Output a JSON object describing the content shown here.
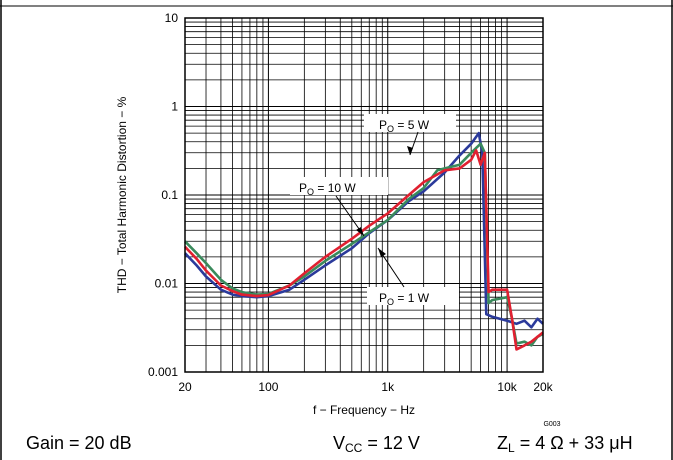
{
  "chart_data": {
    "type": "line",
    "x_scale": "log",
    "y_scale": "log",
    "xlim": [
      20,
      20000
    ],
    "ylim": [
      0.001,
      10
    ],
    "grid": true,
    "xlabel": "f − Frequency − Hz",
    "ylabel": "THD − Total Harmonic Distortion − %",
    "x_ticks": [
      {
        "value": 20,
        "label": "20"
      },
      {
        "value": 100,
        "label": "100"
      },
      {
        "value": 1000,
        "label": "1k"
      },
      {
        "value": 10000,
        "label": "10k"
      },
      {
        "value": 20000,
        "label": "20k"
      }
    ],
    "y_ticks": [
      {
        "value": 0.001,
        "label": "0.001"
      },
      {
        "value": 0.01,
        "label": "0.01"
      },
      {
        "value": 0.1,
        "label": "0.1"
      },
      {
        "value": 1,
        "label": "1"
      },
      {
        "value": 10,
        "label": "10"
      }
    ],
    "series": [
      {
        "color": "#2b3a9b",
        "x": [
          20,
          25,
          30,
          40,
          50,
          60,
          80,
          100,
          150,
          200,
          300,
          500,
          700,
          1000,
          1500,
          2000,
          3000,
          4000,
          5000,
          5800,
          6200,
          6700,
          7500,
          10000,
          12000,
          14000,
          16000,
          18000,
          20000
        ],
        "y": [
          0.022,
          0.016,
          0.012,
          0.0085,
          0.0075,
          0.0072,
          0.007,
          0.0072,
          0.0085,
          0.011,
          0.016,
          0.025,
          0.037,
          0.052,
          0.085,
          0.11,
          0.18,
          0.28,
          0.38,
          0.5,
          0.3,
          0.0045,
          0.0042,
          0.0038,
          0.0035,
          0.0038,
          0.0032,
          0.004,
          0.0035
        ]
      },
      {
        "color": "#3a8a5c",
        "x": [
          20,
          25,
          30,
          40,
          50,
          60,
          80,
          100,
          150,
          200,
          300,
          500,
          700,
          1000,
          1500,
          2000,
          2600,
          3000,
          4000,
          5000,
          6000,
          6500,
          7000,
          7500,
          10000,
          11000,
          12000,
          14000,
          16000,
          18000,
          20000
        ],
        "y": [
          0.03,
          0.022,
          0.017,
          0.011,
          0.0088,
          0.008,
          0.0075,
          0.0076,
          0.0095,
          0.012,
          0.018,
          0.028,
          0.038,
          0.052,
          0.09,
          0.12,
          0.19,
          0.2,
          0.22,
          0.3,
          0.38,
          0.3,
          0.006,
          0.0065,
          0.007,
          0.004,
          0.0021,
          0.0022,
          0.002,
          0.0025,
          0.0027
        ]
      },
      {
        "color": "#e02030",
        "x": [
          20,
          25,
          30,
          40,
          50,
          60,
          80,
          100,
          150,
          200,
          300,
          500,
          700,
          1000,
          1500,
          2000,
          3000,
          4000,
          5000,
          5500,
          6000,
          6500,
          7000,
          7500,
          10000,
          11000,
          12000,
          14000,
          16000,
          18000,
          20000
        ],
        "y": [
          0.026,
          0.019,
          0.014,
          0.0095,
          0.0082,
          0.0075,
          0.0072,
          0.0074,
          0.0095,
          0.013,
          0.02,
          0.032,
          0.045,
          0.062,
          0.1,
          0.14,
          0.19,
          0.2,
          0.25,
          0.32,
          0.22,
          0.3,
          0.008,
          0.0085,
          0.0085,
          0.004,
          0.0018,
          0.002,
          0.0022,
          0.0025,
          0.0028
        ]
      }
    ],
    "annotations": [
      {
        "text": "P",
        "sub": "O",
        "rest": " = 5 W"
      },
      {
        "text": "P",
        "sub": "O",
        "rest": " = 10 W"
      },
      {
        "text": "P",
        "sub": "O",
        "rest": " = 1 W"
      }
    ],
    "figure_id": "G003"
  },
  "conditions": {
    "gain": "Gain = 20 dB",
    "vcc_main": "V",
    "vcc_sub": "CC",
    "vcc_rest": " = 12 V",
    "zl_main": "Z",
    "zl_sub": "L",
    "zl_rest": " = 4 Ω + 33 μH"
  }
}
